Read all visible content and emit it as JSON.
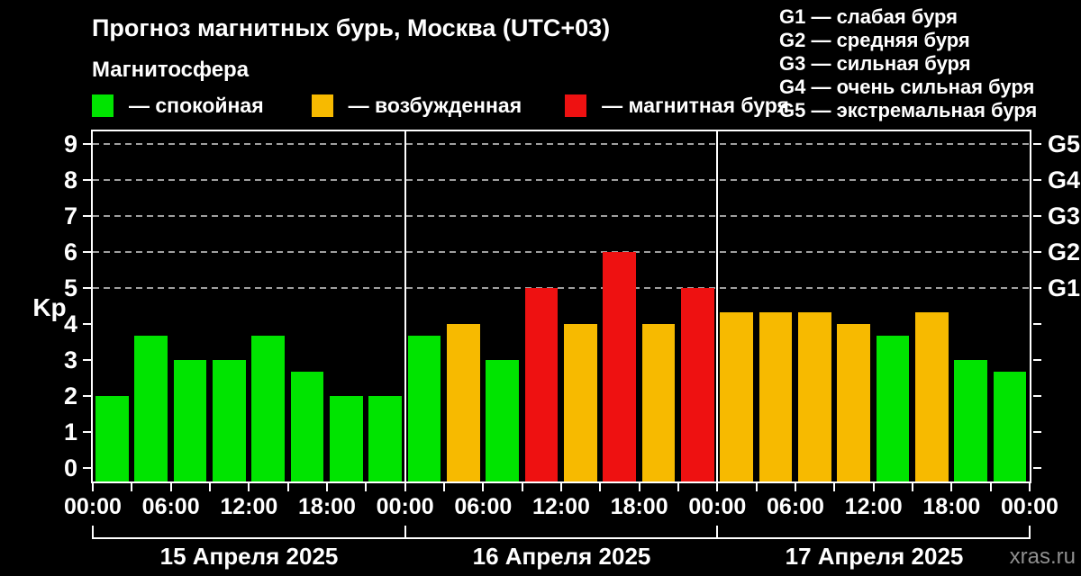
{
  "title": "Прогноз магнитных бурь, Москва (UTC+03)",
  "subtitle": "Магнитосфера",
  "legend": {
    "items": [
      {
        "label": "— спокойная",
        "level": "quiet",
        "color": "#00e400"
      },
      {
        "label": "— возбужденная",
        "level": "active",
        "color": "#f7ba00"
      },
      {
        "label": "— магнитная буря",
        "level": "storm",
        "color": "#ee1111"
      }
    ]
  },
  "storm_scale": {
    "items": [
      {
        "label": "G1 — слабая буря"
      },
      {
        "label": "G2 — средняя буря"
      },
      {
        "label": "G3 — сильная буря"
      },
      {
        "label": "G4 — очень сильная буря"
      },
      {
        "label": "G5 — экстремальная буря"
      }
    ]
  },
  "watermark": "xras.ru",
  "chart_data": {
    "type": "bar",
    "title": "Прогноз магнитных бурь, Москва (UTC+03)",
    "ylabel": "Kp",
    "ylim": [
      0,
      9
    ],
    "yticks": [
      0,
      1,
      2,
      3,
      4,
      5,
      6,
      7,
      8,
      9
    ],
    "grid_levels": [
      5,
      6,
      7,
      8,
      9
    ],
    "grid_style": "dashed",
    "right_axis": [
      {
        "kp": 5,
        "label": "G1"
      },
      {
        "kp": 6,
        "label": "G2"
      },
      {
        "kp": 7,
        "label": "G3"
      },
      {
        "kp": 8,
        "label": "G4"
      },
      {
        "kp": 9,
        "label": "G5"
      }
    ],
    "x_tick_labels": [
      "00:00",
      "06:00",
      "12:00",
      "18:00",
      "00:00",
      "06:00",
      "12:00",
      "18:00",
      "00:00",
      "06:00",
      "12:00",
      "18:00",
      "00:00"
    ],
    "bar_interval_hours": 3,
    "level_colors": {
      "quiet": "#00e400",
      "active": "#f7ba00",
      "storm": "#ee1111"
    },
    "days": [
      {
        "date": "15 Апреля 2025",
        "values": [
          2,
          3.67,
          3,
          3,
          3.67,
          2.67,
          2,
          2
        ],
        "levels": [
          "quiet",
          "quiet",
          "quiet",
          "quiet",
          "quiet",
          "quiet",
          "quiet",
          "quiet"
        ]
      },
      {
        "date": "16 Апреля 2025",
        "values": [
          3.67,
          4,
          3,
          5,
          4,
          6,
          4,
          5
        ],
        "levels": [
          "quiet",
          "active",
          "quiet",
          "storm",
          "active",
          "storm",
          "active",
          "storm"
        ]
      },
      {
        "date": "17 Апреля 2025",
        "values": [
          4.33,
          4.33,
          4.33,
          4,
          3.67,
          4.33,
          3,
          2.67
        ],
        "levels": [
          "active",
          "active",
          "active",
          "active",
          "quiet",
          "active",
          "quiet",
          "quiet"
        ]
      }
    ]
  }
}
